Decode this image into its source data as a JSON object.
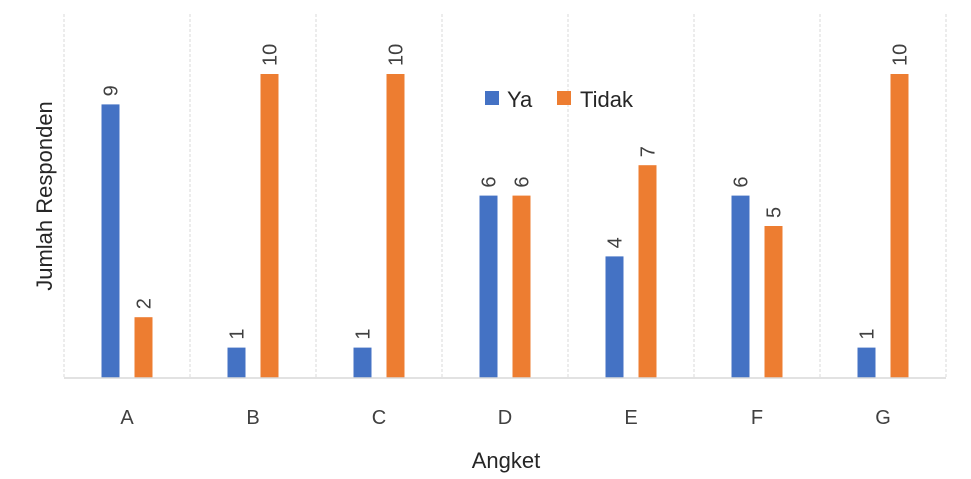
{
  "chart_data": {
    "type": "bar",
    "title": "",
    "xlabel": "Angket",
    "ylabel": "Jumlah Responden",
    "categories": [
      "A",
      "B",
      "C",
      "D",
      "E",
      "F",
      "G"
    ],
    "series": [
      {
        "name": "Ya",
        "color": "#4472C4",
        "values": [
          9,
          1,
          1,
          6,
          4,
          6,
          1
        ]
      },
      {
        "name": "Tidak",
        "color": "#ED7D31",
        "values": [
          2,
          10,
          10,
          6,
          7,
          5,
          10
        ]
      }
    ],
    "ylim": [
      0,
      12
    ],
    "grid": "vertical dashed category separators",
    "legend_position": "top-center, inside plot",
    "data_labels": "rotated -90 degrees, above bars"
  }
}
